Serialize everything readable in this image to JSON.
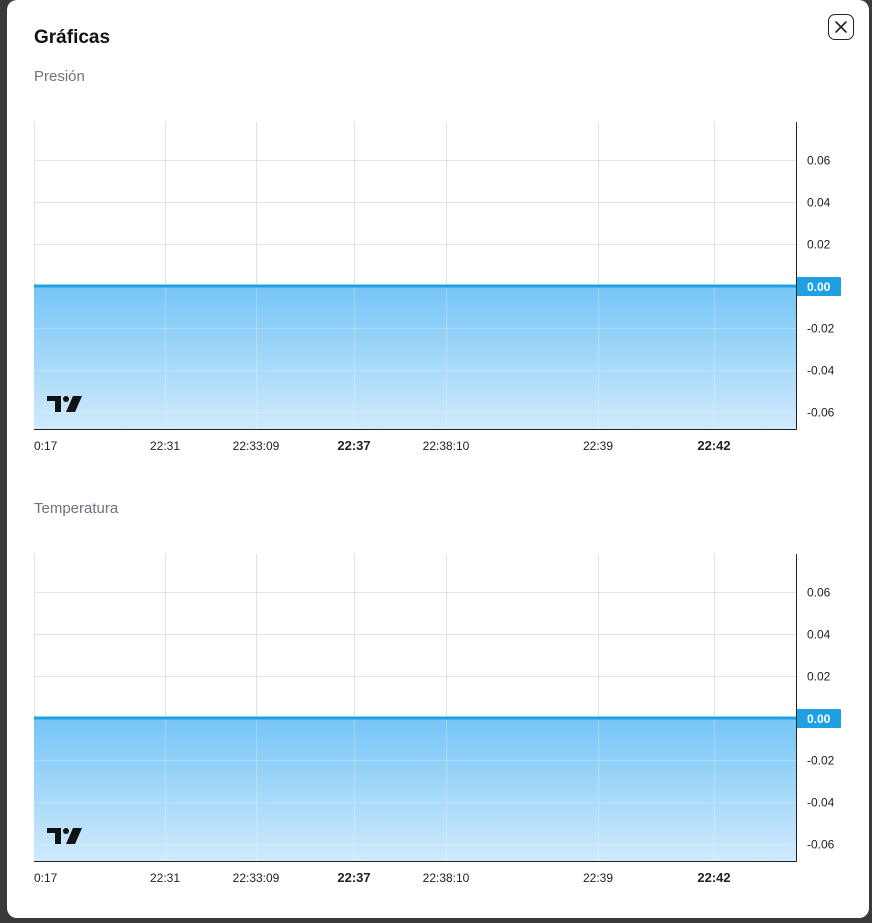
{
  "modal": {
    "title": "Gráficas",
    "close_icon": "close-icon"
  },
  "colors": {
    "line": "#1ea1e3",
    "area_top": "#6ec2f6",
    "area_bottom": "#cde9fc",
    "grid": "#e2e2e2",
    "price_label_bg": "#1ea1e3"
  },
  "charts": [
    {
      "label": "Presión",
      "chart_data": {
        "type": "area",
        "x_ticks": [
          {
            "label": "0:17",
            "bold": false
          },
          {
            "label": "22:31",
            "bold": false
          },
          {
            "label": "22:33:09",
            "bold": false
          },
          {
            "label": "22:37",
            "bold": true
          },
          {
            "label": "22:38:10",
            "bold": false
          },
          {
            "label": "22:39",
            "bold": false
          },
          {
            "label": "22:42",
            "bold": true
          }
        ],
        "y_ticks": [
          "0.06",
          "0.04",
          "0.02",
          "-0.02",
          "-0.04",
          "-0.06"
        ],
        "ylim": [
          -0.068,
          0.078
        ],
        "series": [
          {
            "values": [
              0,
              0,
              0,
              0,
              0,
              0,
              0,
              0
            ]
          }
        ],
        "last_value_label": "0.00",
        "last_value": 0,
        "watermark": "tradingview-logo"
      }
    },
    {
      "label": "Temperatura",
      "chart_data": {
        "type": "area",
        "x_ticks": [
          {
            "label": "0:17",
            "bold": false
          },
          {
            "label": "22:31",
            "bold": false
          },
          {
            "label": "22:33:09",
            "bold": false
          },
          {
            "label": "22:37",
            "bold": true
          },
          {
            "label": "22:38:10",
            "bold": false
          },
          {
            "label": "22:39",
            "bold": false
          },
          {
            "label": "22:42",
            "bold": true
          }
        ],
        "y_ticks": [
          "0.06",
          "0.04",
          "0.02",
          "-0.02",
          "-0.04",
          "-0.06"
        ],
        "ylim": [
          -0.068,
          0.078
        ],
        "series": [
          {
            "values": [
              0,
              0,
              0,
              0,
              0,
              0,
              0,
              0
            ]
          }
        ],
        "last_value_label": "0.00",
        "last_value": 0,
        "watermark": "tradingview-logo"
      }
    }
  ]
}
